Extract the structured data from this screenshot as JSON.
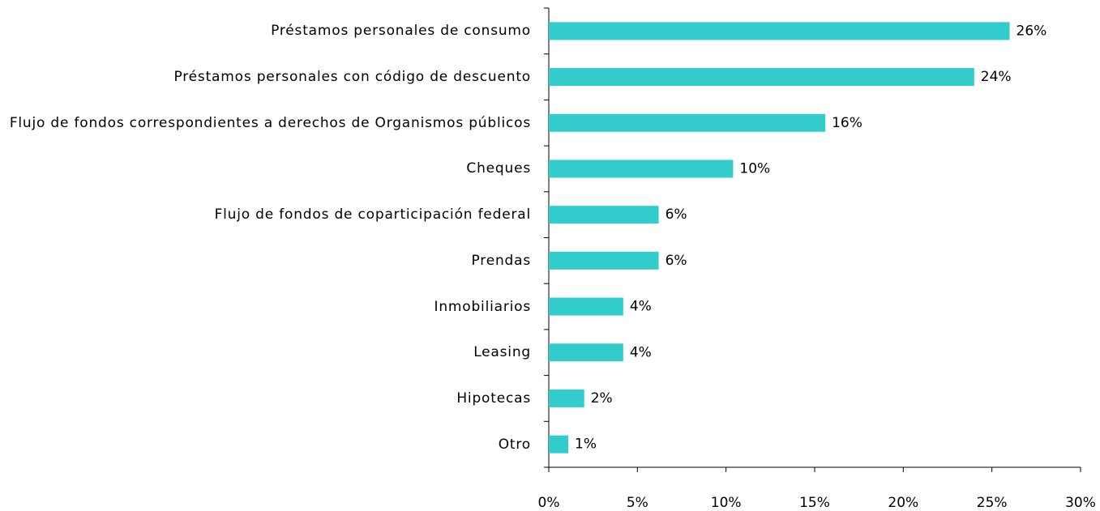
{
  "chart_data": {
    "type": "bar",
    "orientation": "horizontal",
    "categories": [
      "Préstamos personales de consumo",
      "Préstamos personales con código de descuento",
      "Flujo de fondos correspondientes a derechos de Organismos públicos",
      "Cheques",
      "Flujo de fondos de coparticipación federal",
      "Prendas",
      "Inmobiliarios",
      "Leasing",
      "Hipotecas",
      "Otro"
    ],
    "values": [
      26,
      24,
      15.6,
      10.4,
      6.2,
      6.2,
      4.2,
      4.2,
      2.0,
      1.1
    ],
    "value_labels": [
      "26%",
      "24%",
      "16%",
      "10%",
      "6%",
      "6%",
      "4%",
      "4%",
      "2%",
      "1%"
    ],
    "color": "#33cccc",
    "xlim": [
      0,
      30
    ],
    "xticks": [
      {
        "value": 0,
        "label": "0%"
      },
      {
        "value": 5,
        "label": "5%"
      },
      {
        "value": 10,
        "label": "10%"
      },
      {
        "value": 15,
        "label": "15%"
      },
      {
        "value": 20,
        "label": "20%"
      },
      {
        "value": 25,
        "label": "25%"
      },
      {
        "value": 30,
        "label": "30%"
      }
    ],
    "grid": false
  }
}
